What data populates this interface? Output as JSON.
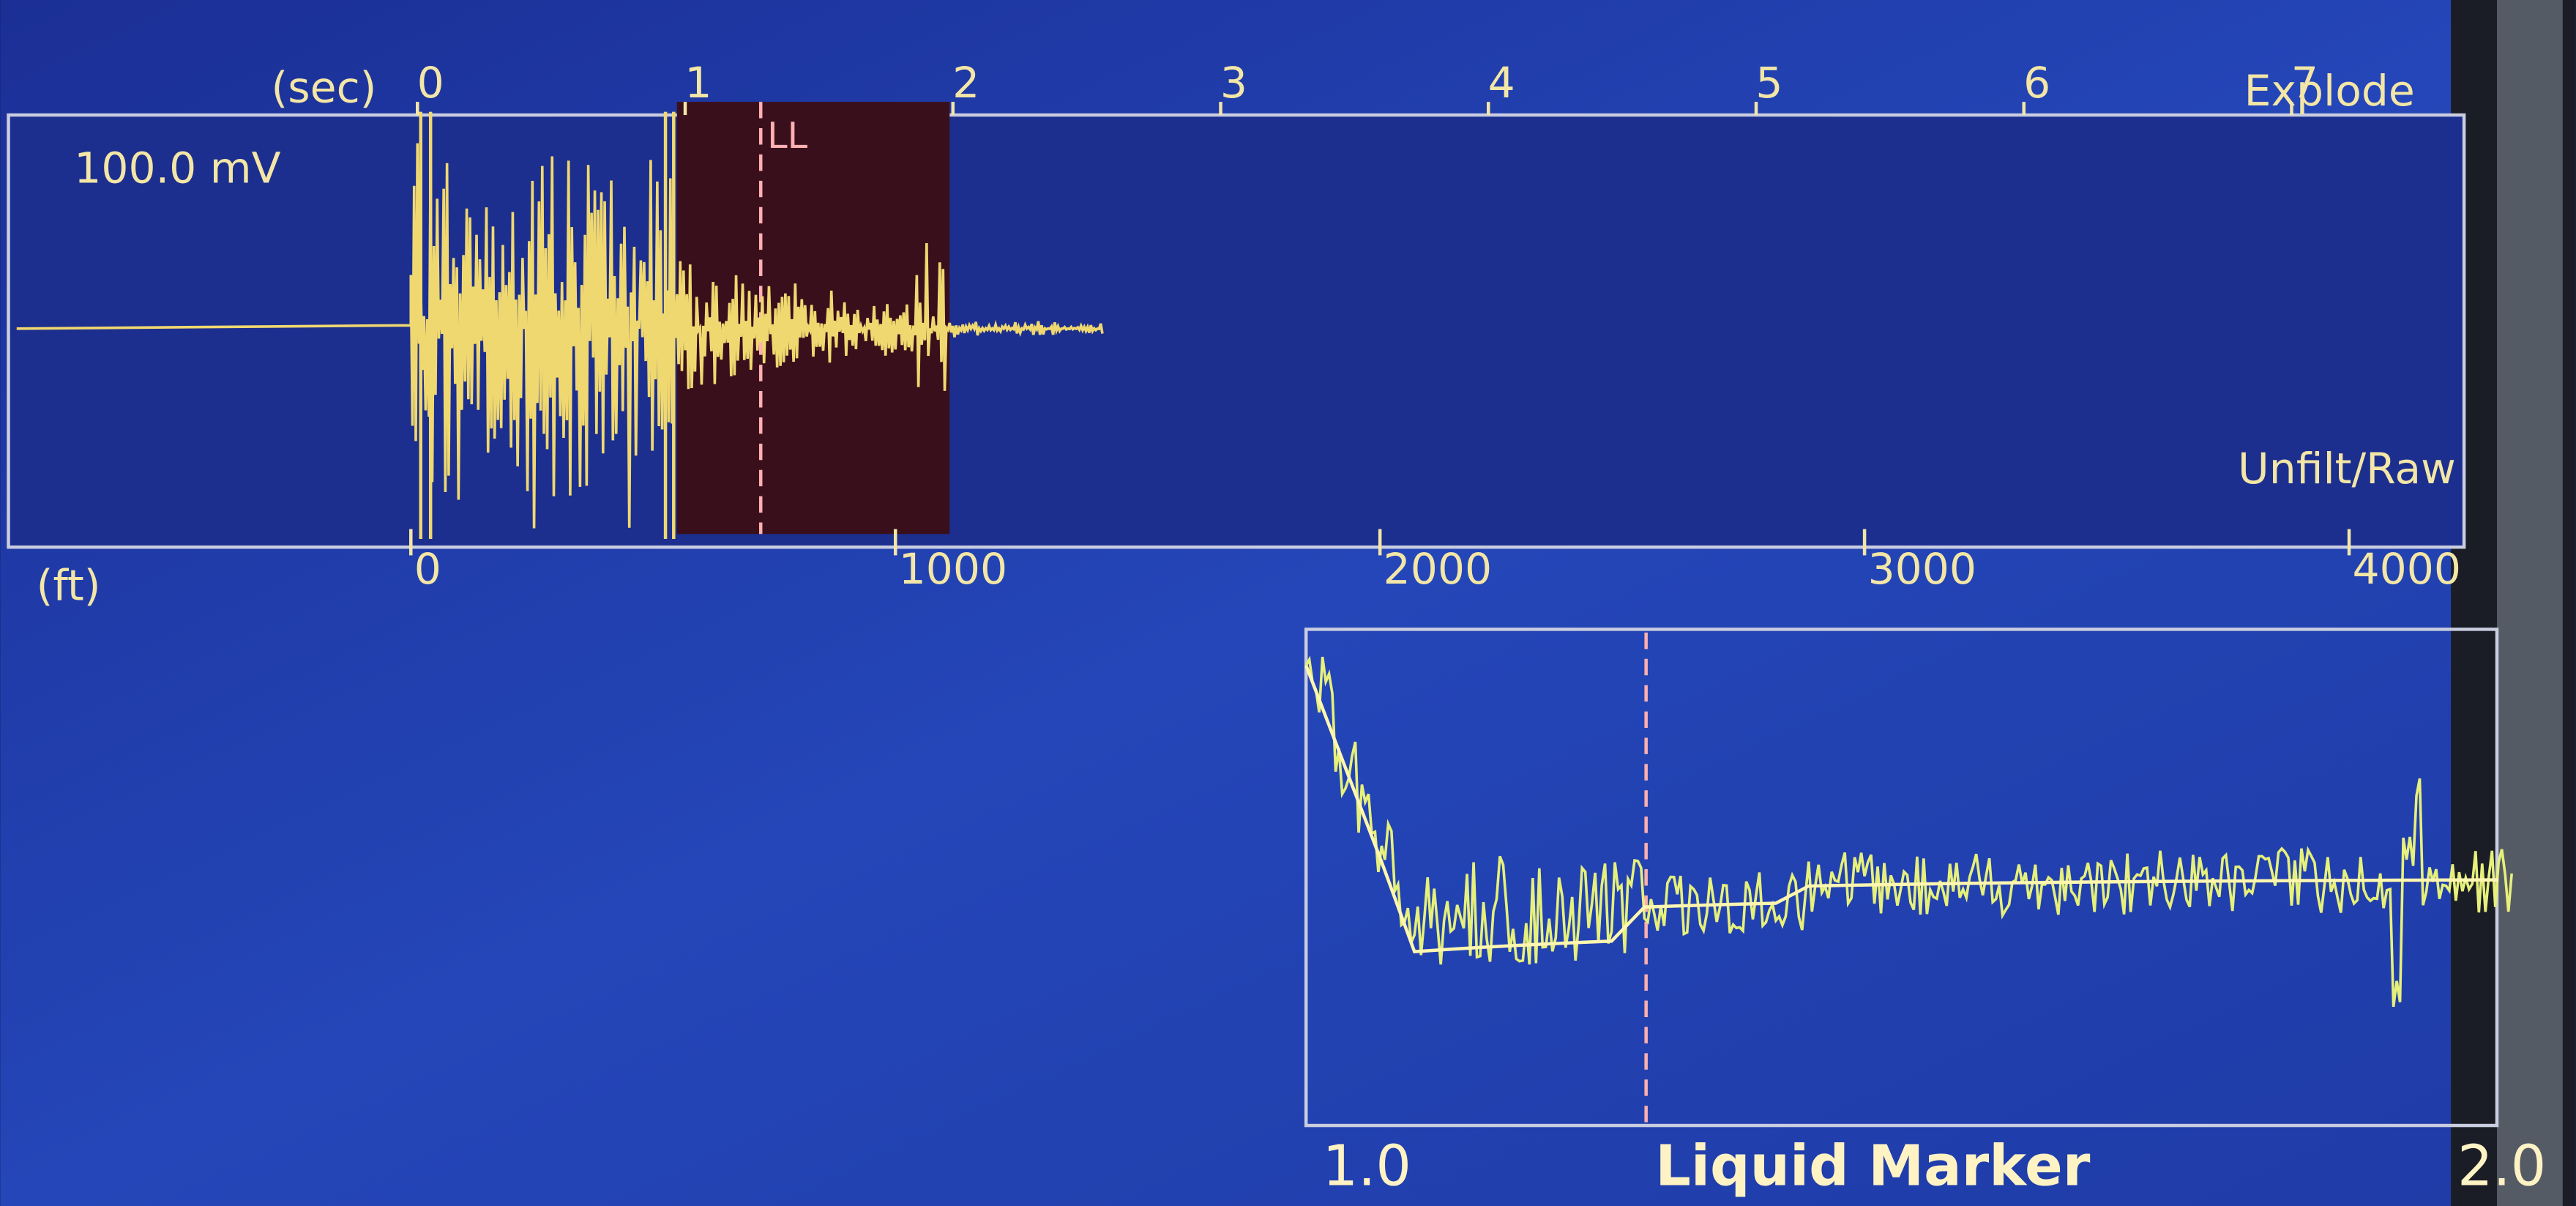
{
  "top_panel": {
    "time_axis": {
      "unit": "(sec)",
      "ticks": [
        0,
        1,
        2,
        3,
        4,
        5,
        6,
        7
      ]
    },
    "mode": "Explode",
    "scale": "100.0 mV",
    "marker": "LL",
    "filter": "Unfilt/Raw",
    "depth_axis": {
      "unit": "(ft)",
      "ticks": [
        0,
        1000,
        2000,
        3000,
        4000
      ]
    }
  },
  "zoom_panel": {
    "start": "1.0",
    "label": "Liquid Marker",
    "end": "2.0"
  }
}
